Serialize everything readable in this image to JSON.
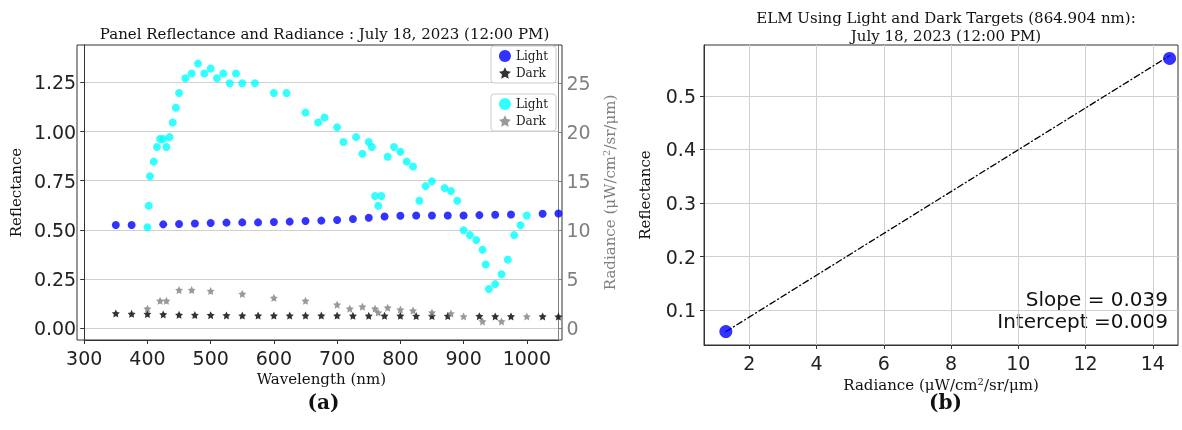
{
  "chart_data": [
    {
      "type": "scatter",
      "title": "Panel Reflectance and Radiance : July 18, 2023 (12:00 PM)",
      "xlabel": "Wavelength (nm)",
      "ylabel": "Reflectance",
      "y2label": "Radiance (μW/cm$^{2}$/sr/μm)",
      "xlim": [
        300,
        1050
      ],
      "xticks": [
        300,
        400,
        500,
        600,
        700,
        800,
        900,
        1000
      ],
      "ylim": [
        -0.06,
        1.44
      ],
      "yticks": [
        {
          "value": 0,
          "label": "0.00"
        },
        0.25,
        {
          "value": 0.5,
          "label": "0.50"
        },
        0.75,
        {
          "value": 1,
          "label": "1.00"
        },
        1.25
      ],
      "y2lim": [
        -1.2,
        28.9
      ],
      "y2ticks": [
        0,
        5,
        10,
        15,
        20,
        25
      ],
      "grid": "y",
      "legend": "top right",
      "annotations": [
        "(a)"
      ],
      "series": [
        {
          "name": "Light",
          "color": "#0000ff",
          "marker": "circle",
          "x": [
            350,
            375,
            425,
            450,
            475,
            500,
            525,
            550,
            575,
            600,
            625,
            650,
            675,
            700,
            725,
            750,
            775,
            800,
            825,
            850,
            875,
            900,
            925,
            950,
            975,
            1025,
            1050
          ],
          "values": [
            0.525,
            0.525,
            0.528,
            0.53,
            0.532,
            0.535,
            0.537,
            0.538,
            0.538,
            0.54,
            0.542,
            0.545,
            0.547,
            0.55,
            0.555,
            0.562,
            0.568,
            0.572,
            0.573,
            0.573,
            0.573,
            0.573,
            0.575,
            0.577,
            0.578,
            0.582,
            0.583
          ]
        },
        {
          "name": "Dark",
          "color": "#000000",
          "marker": "star",
          "x": [
            350,
            375,
            400,
            425,
            450,
            475,
            500,
            525,
            550,
            575,
            600,
            625,
            650,
            675,
            700,
            725,
            750,
            775,
            800,
            825,
            850,
            875,
            925,
            950,
            975,
            1025,
            1050
          ],
          "values": [
            0.075,
            0.073,
            0.072,
            0.07,
            0.068,
            0.067,
            0.066,
            0.065,
            0.064,
            0.064,
            0.064,
            0.064,
            0.064,
            0.064,
            0.064,
            0.063,
            0.063,
            0.063,
            0.063,
            0.062,
            0.062,
            0.062,
            0.061,
            0.06,
            0.06,
            0.06,
            0.059
          ]
        },
        {
          "name": "Light",
          "color": "#00ffff",
          "marker": "circle",
          "axis": "y2",
          "x": [
            400,
            402,
            404,
            410,
            415,
            420,
            425,
            430,
            435,
            440,
            445,
            450,
            460,
            470,
            480,
            490,
            500,
            510,
            520,
            530,
            540,
            550,
            570,
            600,
            620,
            650,
            670,
            680,
            700,
            710,
            730,
            740,
            750,
            755,
            760,
            765,
            770,
            780,
            790,
            800,
            810,
            820,
            830,
            840,
            850,
            870,
            880,
            890,
            900,
            910,
            920,
            930,
            935,
            940,
            950,
            960,
            970,
            980,
            990,
            1000
          ],
          "values": [
            10.3,
            12.5,
            15.5,
            17,
            18.5,
            19.3,
            19.3,
            18.5,
            19.5,
            21,
            22.5,
            24,
            25.5,
            26,
            27,
            26,
            26.5,
            25.5,
            26,
            25,
            26,
            25,
            25,
            24,
            24,
            22,
            21,
            21.5,
            20.5,
            19,
            19.5,
            17.8,
            19,
            18.5,
            13.5,
            12.5,
            13.5,
            17.5,
            18.5,
            18,
            17,
            16.5,
            13,
            14.5,
            15,
            14.3,
            14,
            13,
            10,
            9.5,
            9,
            8,
            6.5,
            4,
            4.5,
            5.5,
            7,
            9.5,
            10.5,
            11.5
          ]
        },
        {
          "name": "Dark",
          "color": "#808080",
          "marker": "star",
          "axis": "y2",
          "x": [
            400,
            420,
            430,
            450,
            470,
            500,
            550,
            600,
            650,
            700,
            720,
            740,
            760,
            765,
            780,
            800,
            820,
            850,
            880,
            900,
            930,
            960,
            1000
          ],
          "values": [
            2,
            2.8,
            2.8,
            3.9,
            3.9,
            3.8,
            3.5,
            3.1,
            2.8,
            2.4,
            2,
            2.2,
            2,
            1.6,
            2.1,
            1.9,
            1.8,
            1.6,
            1.5,
            1.2,
            0.7,
            0.7,
            1.2
          ]
        }
      ]
    },
    {
      "type": "scatter",
      "title": "ELM Using Light and Dark Targets (864.904 nm):\nJuly 18, 2023 (12:00 PM)",
      "xlabel": "Radiance (μW/cm$^{2}$/sr/μm)",
      "ylabel": "Reflectance",
      "xlim": [
        0.65,
        14.75
      ],
      "xticks": [
        2,
        4,
        6,
        8,
        10,
        12,
        14
      ],
      "ylim": [
        0.035,
        0.595
      ],
      "yticks": [
        0.1,
        0.2,
        0.3,
        0.4,
        0.5
      ],
      "grid": true,
      "annotations": [
        "Slope = 0.039",
        "Intercept =0.009",
        "(b)"
      ],
      "series": [
        {
          "type": "line",
          "color": "#000000",
          "marker": "none",
          "line_style": "dashed",
          "x": [
            1.3,
            14.5
          ],
          "values": [
            0.06,
            0.575
          ]
        },
        {
          "color": "#0000ff",
          "marker": "circle",
          "x": [
            1.3,
            14.5
          ],
          "values": [
            0.06,
            0.57
          ]
        }
      ]
    }
  ]
}
